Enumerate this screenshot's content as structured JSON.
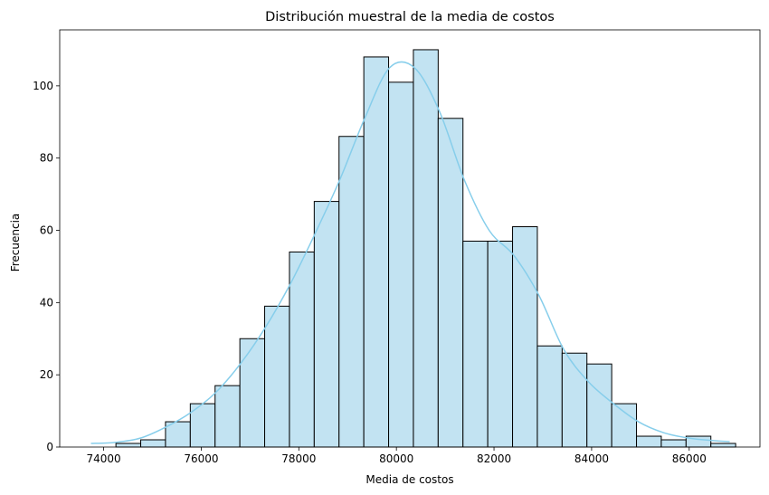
{
  "chart_data": {
    "type": "bar",
    "title": "Distribución muestral de la media de costos",
    "xlabel": "Media de costos",
    "ylabel": "Frecuencia",
    "xlim": [
      73100,
      87450
    ],
    "ylim": [
      0,
      115.5
    ],
    "xticks": [
      74000,
      76000,
      78000,
      80000,
      82000,
      84000,
      86000
    ],
    "yticks": [
      0,
      20,
      40,
      60,
      80,
      100
    ],
    "grid": false,
    "bin_start": 74252,
    "bin_width": 508,
    "bin_counts": [
      1,
      2,
      7,
      12,
      17,
      30,
      39,
      54,
      68,
      86,
      108,
      101,
      110,
      91,
      57,
      57,
      61,
      28,
      26,
      23,
      12,
      3,
      2,
      3,
      1
    ],
    "kde": {
      "x": [
        73740,
        74250,
        74760,
        75270,
        75780,
        76290,
        76800,
        77310,
        77820,
        78330,
        78840,
        79350,
        79860,
        80370,
        80880,
        81390,
        81900,
        82410,
        82920,
        83430,
        83940,
        84450,
        84960,
        85470,
        85980,
        86490,
        86830
      ],
      "y": [
        1,
        1.3,
        2.5,
        5.5,
        9.5,
        15,
        23,
        33,
        45,
        59,
        74,
        91,
        105,
        105,
        93,
        74,
        60,
        53,
        42,
        27,
        18,
        12,
        7,
        4,
        2.5,
        1.8,
        1.5
      ]
    },
    "colors": {
      "bar_fill": "#c2e3f2",
      "bar_edge": "#000000",
      "kde_line": "#87ceeb"
    }
  }
}
